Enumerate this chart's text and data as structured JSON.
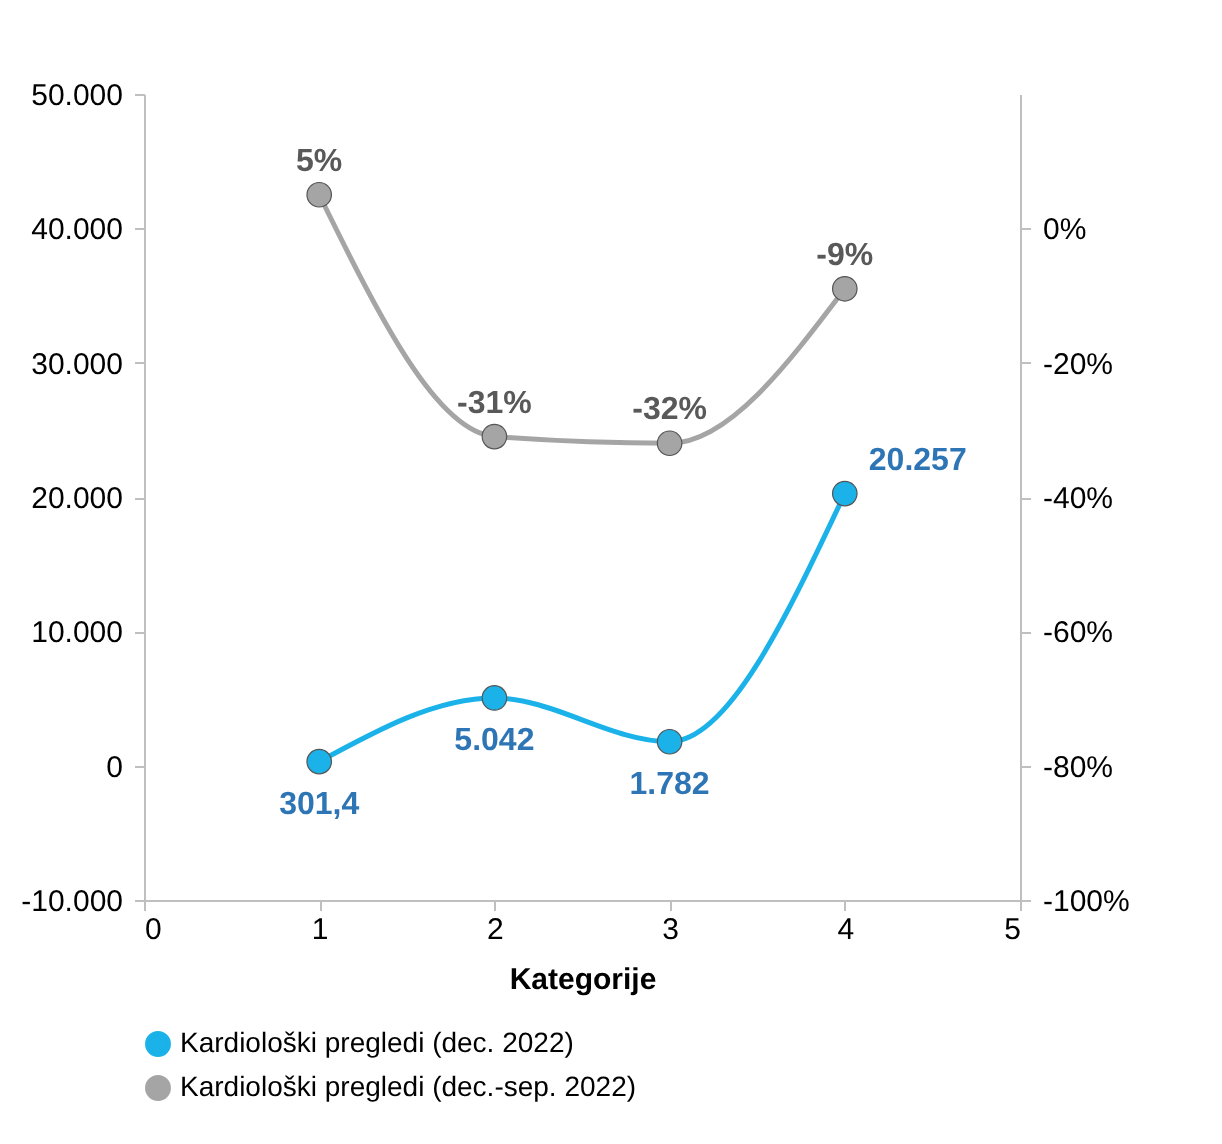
{
  "chart_data": {
    "type": "line",
    "xlabel": "Kategorije",
    "x": [
      1,
      2,
      3,
      4
    ],
    "xlim": [
      0,
      5
    ],
    "xticks": [
      0,
      1,
      2,
      3,
      4,
      5
    ],
    "ylim": [
      -10000,
      50000
    ],
    "yticks": [
      {
        "value": -10000,
        "label": "-10.000"
      },
      {
        "value": 0,
        "label": "0"
      },
      {
        "value": 10000,
        "label": "10.000"
      },
      {
        "value": 20000,
        "label": "20.000"
      },
      {
        "value": 30000,
        "label": "30.000"
      },
      {
        "value": 40000,
        "label": "40.000"
      },
      {
        "value": 50000,
        "label": "50.000"
      }
    ],
    "y2lim": [
      -100,
      20
    ],
    "y2ticks": [
      {
        "value": -100,
        "label": "-100%"
      },
      {
        "value": -80,
        "label": "-80%"
      },
      {
        "value": -60,
        "label": "-60%"
      },
      {
        "value": -40,
        "label": "-40%"
      },
      {
        "value": -20,
        "label": "-20%"
      },
      {
        "value": 0,
        "label": "0%"
      }
    ],
    "series": [
      {
        "name": "Kardiološki pregledi (dec. 2022)",
        "color": "#1ab2e8",
        "values": [
          301.4,
          5042,
          1782,
          20257
        ],
        "value_labels": [
          "301,4",
          "5.042",
          "1.782",
          "20.257"
        ]
      },
      {
        "name": "Kardiološki pregledi (dec.-sep. 2022)",
        "color": "#a5a5a5",
        "axis": "y2",
        "values": [
          5,
          -31,
          -32,
          -9
        ],
        "value_labels": [
          "5%",
          "-31%",
          "-32%",
          "-9%"
        ]
      }
    ],
    "grid": false,
    "legend": "bottom",
    "marker": "circle",
    "line_style": "solid"
  }
}
